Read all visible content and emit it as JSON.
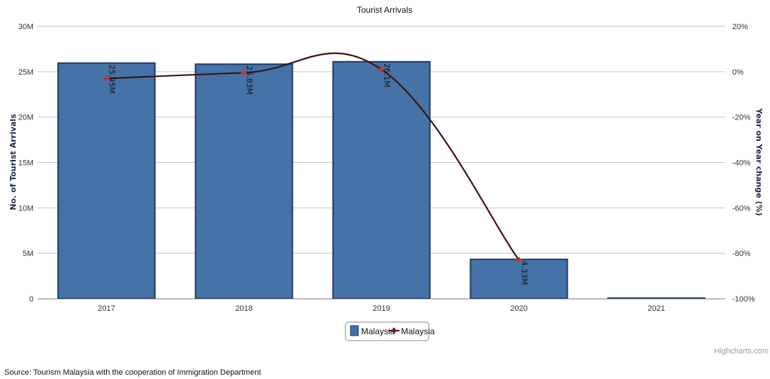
{
  "chart_data": {
    "type": "bar",
    "title": "Tourist Arrivals",
    "categories": [
      "2017",
      "2018",
      "2019",
      "2020",
      "2021"
    ],
    "series": [
      {
        "name": "Malaysia",
        "kind": "bar",
        "axis": "left",
        "color": "#4572a7",
        "values": [
          25.95,
          25.83,
          26.1,
          4.33,
          0
        ],
        "labels": [
          "25.95M",
          "25.83M",
          "26.1M",
          "4.33M",
          ""
        ]
      },
      {
        "name": "Malaysia",
        "kind": "line",
        "axis": "right",
        "color": "#5c1a1a",
        "values": [
          -3,
          -0.5,
          1,
          -83,
          null
        ]
      }
    ],
    "y_left": {
      "label": "No. of Tourist Arrivals",
      "range": [
        0,
        30
      ],
      "ticks": [
        0,
        5,
        10,
        15,
        20,
        25,
        30
      ],
      "tick_labels": [
        "0",
        "5M",
        "10M",
        "15M",
        "20M",
        "25M",
        "30M"
      ]
    },
    "y_right": {
      "label": "Year on Year change (%)",
      "range": [
        -100,
        20
      ],
      "ticks": [
        -100,
        -80,
        -60,
        -40,
        -20,
        0,
        20
      ],
      "tick_labels": [
        "-100%",
        "-80%",
        "-60%",
        "-40%",
        "-20%",
        "0%",
        "20%"
      ]
    },
    "grid": true,
    "legend": "bottom-center"
  },
  "credits": "Highcharts.com",
  "source": "Source: Tourism Malaysia with the cooperation of Immigration Department"
}
